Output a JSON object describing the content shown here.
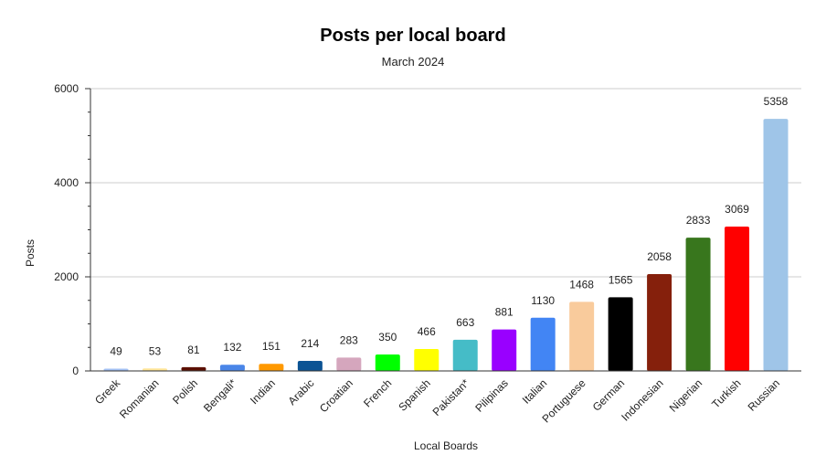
{
  "chart_data": {
    "type": "bar",
    "title": "Posts per local board",
    "subtitle": "March 2024",
    "xlabel": "Local Boards",
    "ylabel": "Posts",
    "ylim": [
      0,
      6000
    ],
    "yticks": [
      0,
      2000,
      4000,
      6000
    ],
    "grid": true,
    "legend": "none",
    "categories": [
      "Greek",
      "Romanian",
      "Polish",
      "Bengali*",
      "Indian",
      "Arabic",
      "Croatian",
      "French",
      "Spanish",
      "Pakistan*",
      "Pilipinas",
      "Italian",
      "Portuguese",
      "German",
      "Indonesian",
      "Nigerian",
      "Turkish",
      "Russian"
    ],
    "values": [
      49,
      53,
      81,
      132,
      151,
      214,
      283,
      350,
      466,
      663,
      881,
      1130,
      1468,
      1565,
      2058,
      2833,
      3069,
      5358
    ],
    "colors": [
      "#a4c2f4",
      "#ffe599",
      "#5b0f00",
      "#4a86e8",
      "#ff9900",
      "#0b5394",
      "#d5a6bd",
      "#00ff00",
      "#ffff00",
      "#45bcc7",
      "#9900ff",
      "#4285f4",
      "#f9cb9c",
      "#000000",
      "#85200c",
      "#38761d",
      "#ff0000",
      "#9fc5e8"
    ]
  }
}
